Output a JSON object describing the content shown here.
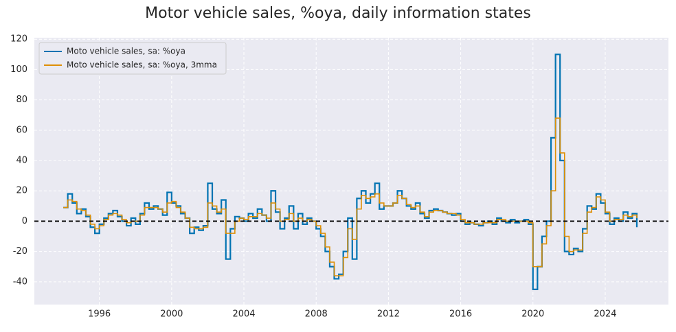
{
  "chart_data": {
    "type": "line",
    "step": true,
    "title": "Motor vehicle sales, %oya, daily information states",
    "x": [
      1994,
      1994.25,
      1994.5,
      1994.75,
      1995,
      1995.25,
      1995.5,
      1995.75,
      1996,
      1996.25,
      1996.5,
      1996.75,
      1997,
      1997.25,
      1997.5,
      1997.75,
      1998,
      1998.25,
      1998.5,
      1998.75,
      1999,
      1999.25,
      1999.5,
      1999.75,
      2000,
      2000.25,
      2000.5,
      2000.75,
      2001,
      2001.25,
      2001.5,
      2001.75,
      2002,
      2002.25,
      2002.5,
      2002.75,
      2003,
      2003.25,
      2003.5,
      2003.75,
      2004,
      2004.25,
      2004.5,
      2004.75,
      2005,
      2005.25,
      2005.5,
      2005.75,
      2006,
      2006.25,
      2006.5,
      2006.75,
      2007,
      2007.25,
      2007.5,
      2007.75,
      2008,
      2008.25,
      2008.5,
      2008.75,
      2009,
      2009.25,
      2009.5,
      2009.75,
      2010,
      2010.25,
      2010.5,
      2010.75,
      2011,
      2011.25,
      2011.5,
      2011.75,
      2012,
      2012.25,
      2012.5,
      2012.75,
      2013,
      2013.25,
      2013.5,
      2013.75,
      2014,
      2014.25,
      2014.5,
      2014.75,
      2015,
      2015.25,
      2015.5,
      2015.75,
      2016,
      2016.25,
      2016.5,
      2016.75,
      2017,
      2017.25,
      2017.5,
      2017.75,
      2018,
      2018.25,
      2018.5,
      2018.75,
      2019,
      2019.25,
      2019.5,
      2019.75,
      2020,
      2020.25,
      2020.5,
      2020.75,
      2021,
      2021.25,
      2021.5,
      2021.75,
      2022,
      2022.25,
      2022.5,
      2022.75,
      2023,
      2023.25,
      2023.5,
      2023.75,
      2024,
      2024.25,
      2024.5,
      2024.75,
      2025,
      2025.25,
      2025.5,
      2025.75
    ],
    "series": [
      {
        "name": "Moto vehicle sales, sa: %oya",
        "color": "#0173b2",
        "values": [
          9,
          18,
          12,
          5,
          8,
          3,
          -4,
          -8,
          -2,
          2,
          5,
          7,
          3,
          0,
          -3,
          2,
          -2,
          5,
          12,
          8,
          10,
          8,
          4,
          19,
          12,
          10,
          5,
          2,
          -8,
          -4,
          -6,
          -3,
          25,
          8,
          5,
          14,
          -25,
          -5,
          3,
          2,
          0,
          5,
          2,
          8,
          4,
          0,
          20,
          6,
          -5,
          2,
          10,
          -5,
          5,
          -2,
          2,
          0,
          -5,
          -10,
          -20,
          -30,
          -38,
          -35,
          -20,
          2,
          -25,
          15,
          20,
          12,
          18,
          25,
          8,
          10,
          10,
          12,
          20,
          15,
          10,
          8,
          12,
          5,
          2,
          7,
          8,
          7,
          6,
          5,
          4,
          5,
          0,
          -2,
          -1,
          -2,
          -3,
          -1,
          0,
          -2,
          2,
          0,
          -1,
          1,
          -1,
          0,
          1,
          -2,
          -45,
          -30,
          -10,
          0,
          55,
          110,
          40,
          -20,
          -22,
          -18,
          -20,
          -5,
          10,
          8,
          18,
          12,
          5,
          -2,
          2,
          0,
          6,
          2,
          5,
          -4
        ]
      },
      {
        "name": "Moto vehicle sales, sa: %oya, 3mma",
        "color": "#de8f05",
        "values": [
          9,
          14,
          13,
          8,
          7,
          4,
          -2,
          -5,
          -3,
          1,
          4,
          5,
          4,
          1,
          -1,
          0,
          0,
          4,
          9,
          9,
          9,
          8,
          6,
          12,
          13,
          9,
          6,
          2,
          -4,
          -5,
          -5,
          -4,
          12,
          10,
          6,
          8,
          -8,
          -8,
          0,
          2,
          1,
          3,
          3,
          5,
          4,
          2,
          12,
          8,
          0,
          1,
          5,
          0,
          2,
          0,
          1,
          0,
          -3,
          -8,
          -17,
          -27,
          -36,
          -36,
          -24,
          -5,
          -12,
          8,
          17,
          15,
          16,
          18,
          12,
          10,
          10,
          12,
          17,
          15,
          11,
          9,
          10,
          6,
          3,
          6,
          7,
          7,
          6,
          5,
          5,
          4,
          1,
          -1,
          -1,
          -2,
          -2,
          -1,
          -1,
          -1,
          1,
          1,
          0,
          0,
          0,
          0,
          0,
          -1,
          -30,
          -30,
          -15,
          -3,
          20,
          68,
          45,
          -10,
          -20,
          -19,
          -19,
          -8,
          6,
          9,
          16,
          14,
          6,
          0,
          1,
          1,
          4,
          3,
          4,
          2
        ]
      }
    ],
    "xlim": [
      1992.4,
      2027.5
    ],
    "xticks": [
      1996,
      2000,
      2004,
      2008,
      2012,
      2016,
      2020,
      2024
    ],
    "ylim": [
      -55,
      121
    ],
    "yticks": [
      -40,
      -20,
      0,
      20,
      40,
      60,
      80,
      100,
      120
    ],
    "hline": 0,
    "grid": true,
    "legend": "upper left"
  }
}
